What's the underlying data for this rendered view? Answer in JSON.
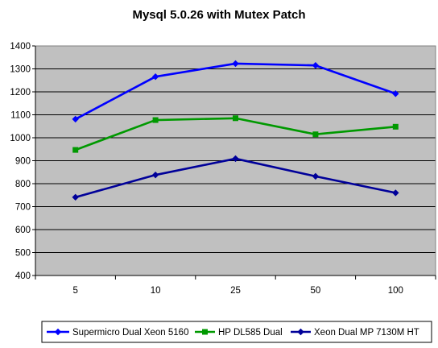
{
  "chart_data": {
    "type": "line",
    "title": "Mysql 5.0.26 with Mutex Patch",
    "xlabel": "",
    "ylabel": "",
    "categories": [
      "5",
      "10",
      "25",
      "50",
      "100"
    ],
    "ylim": [
      400,
      1400
    ],
    "yticks": [
      "400",
      "500",
      "600",
      "700",
      "800",
      "900",
      "1000",
      "1100",
      "1200",
      "1300",
      "1400"
    ],
    "grid": true,
    "legend_position": "bottom",
    "plot_background": "#c0c0c0",
    "series": [
      {
        "name": "Supermicro Dual Xeon 5160",
        "values": [
          1081,
          1266,
          1323,
          1315,
          1192
        ],
        "color": "#0000ff",
        "marker": "diamond"
      },
      {
        "name": "HP DL585 Dual",
        "values": [
          947,
          1077,
          1085,
          1015,
          1048
        ],
        "color": "#009900",
        "marker": "square"
      },
      {
        "name": "Xeon Dual MP 7130M HT",
        "values": [
          741,
          838,
          909,
          832,
          760
        ],
        "color": "#000099",
        "marker": "diamond"
      }
    ]
  }
}
